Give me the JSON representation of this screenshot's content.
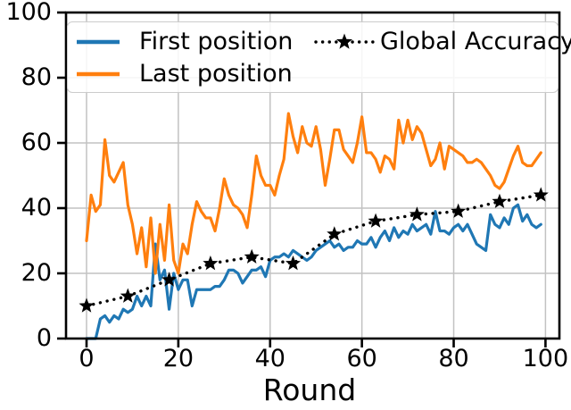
{
  "figure": {
    "xlabel": "Round"
  },
  "legend": {
    "entries": [
      {
        "label": "First position",
        "color": "#1f77b4",
        "style": "solid"
      },
      {
        "label": "Last position",
        "color": "#ff7f0e",
        "style": "solid"
      },
      {
        "label": "Global Accuracy",
        "color": "#000000",
        "style": "dotted-star"
      }
    ]
  },
  "colors": {
    "first_position": "#1f77b4",
    "last_position": "#ff7f0e",
    "global_accuracy": "#000000",
    "grid": "#c2c2c2",
    "spine": "#000000",
    "background": "#ffffff"
  },
  "chart_data": {
    "type": "line",
    "title": "",
    "xlabel": "Round",
    "ylabel": "",
    "xlim": [
      -5,
      103
    ],
    "ylim": [
      0,
      100
    ],
    "xticks": [
      0,
      20,
      40,
      60,
      80,
      100
    ],
    "yticks": [
      0,
      20,
      40,
      60,
      80,
      100
    ],
    "grid": true,
    "legend_position": "upper left",
    "series": [
      {
        "name": "First position",
        "color": "#1f77b4",
        "linestyle": "solid",
        "marker": "none",
        "values": [
          0,
          0,
          0,
          6,
          7,
          5,
          7,
          6,
          9,
          8,
          9,
          13,
          10,
          13,
          10,
          29,
          18,
          21,
          9,
          20,
          15,
          18,
          18,
          10,
          15,
          15,
          15,
          15,
          16,
          16,
          18,
          21,
          21,
          20,
          17,
          19,
          21,
          21,
          22,
          19,
          24,
          25,
          25,
          26,
          25,
          27,
          26,
          25,
          24,
          25,
          27,
          28,
          29,
          30,
          28,
          29,
          27,
          28,
          28,
          30,
          29,
          29,
          31,
          28,
          31,
          33,
          30,
          34,
          31,
          33,
          32,
          35,
          33,
          34,
          35,
          32,
          39,
          33,
          33,
          32,
          34,
          35,
          33,
          35,
          32,
          29,
          28,
          27,
          38,
          35,
          34,
          37,
          35,
          40,
          41,
          36,
          38,
          35,
          34,
          35
        ]
      },
      {
        "name": "Last position",
        "color": "#ff7f0e",
        "linestyle": "solid",
        "marker": "none",
        "values": [
          30,
          44,
          39,
          41,
          61,
          50,
          48,
          51,
          54,
          41,
          35,
          26,
          34,
          22,
          37,
          20,
          35,
          24,
          41,
          24,
          20,
          29,
          26,
          35,
          42,
          39,
          37,
          37,
          33,
          40,
          49,
          44,
          41,
          40,
          38,
          34,
          44,
          56,
          50,
          47,
          47,
          44,
          50,
          55,
          69,
          62,
          57,
          65,
          60,
          59,
          65,
          58,
          47,
          55,
          64,
          64,
          58,
          56,
          54,
          60,
          68,
          57,
          57,
          55,
          51,
          56,
          55,
          52,
          67,
          60,
          67,
          61,
          65,
          63,
          58,
          53,
          55,
          60,
          52,
          59,
          58,
          57,
          56,
          54,
          54,
          55,
          54,
          52,
          50,
          47,
          46,
          48,
          52,
          56,
          59,
          54,
          53,
          53,
          55,
          57
        ]
      },
      {
        "name": "Global Accuracy",
        "color": "#000000",
        "linestyle": "dotted",
        "marker": "star",
        "x": [
          0,
          9,
          18,
          27,
          36,
          45,
          54,
          63,
          72,
          81,
          90,
          99
        ],
        "values": [
          10,
          13,
          18,
          23,
          25,
          23,
          32,
          36,
          38,
          39,
          42,
          44
        ]
      }
    ]
  }
}
